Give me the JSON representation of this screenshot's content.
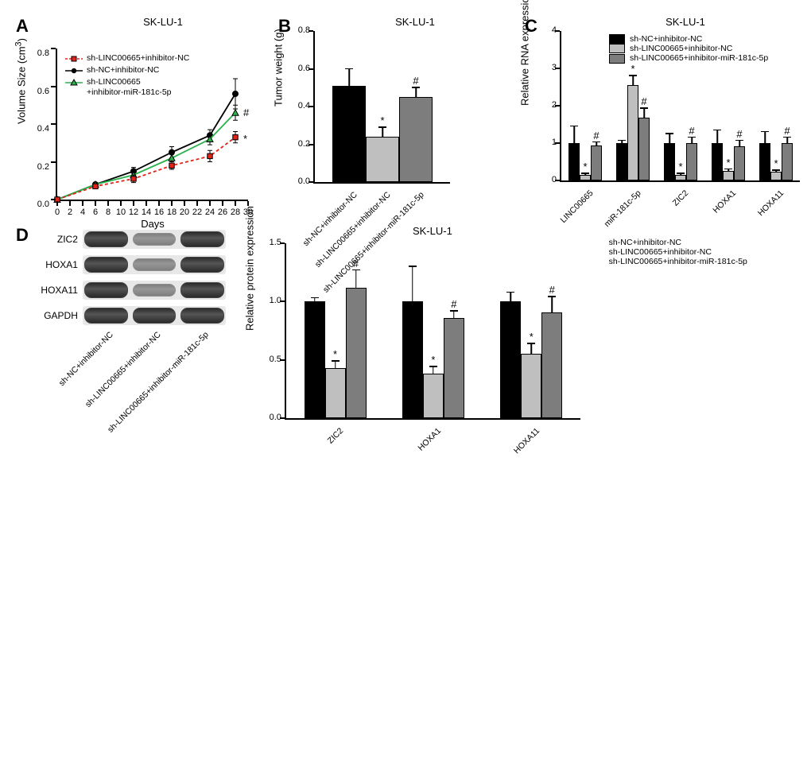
{
  "cellLine": "SK-LU-1",
  "conditions": {
    "c1": "sh-NC+inhibitor-NC",
    "c2": "sh-LINC00665+inhibitor-NC",
    "c3": "sh-LINC00665+inhibitor-miR-181c-5p"
  },
  "colors": {
    "c1": "#000000",
    "c2": "#bfbfbf",
    "c3": "#7d7d7d",
    "line_c1": "#000000",
    "line_c2": "#e2231a",
    "line_c3": "#2bb24c"
  },
  "panelA": {
    "label": "A",
    "title": "SK-LU-1",
    "ylabel": "Volume Size (cm³)",
    "ylabel_sup": "3",
    "ylabel_prefix": "Volume Size (cm",
    "ylabel_suffix": ")",
    "xlabel": "Days",
    "xmin": 0,
    "xmax": 30,
    "ymin": 0,
    "ymax": 0.8,
    "xticks": [
      0,
      2,
      4,
      6,
      8,
      10,
      12,
      14,
      16,
      18,
      20,
      22,
      24,
      26,
      28,
      30
    ],
    "xticklabels": [
      "0",
      "2",
      "4",
      "6",
      "8",
      "10",
      "12",
      "14",
      "16",
      "18",
      "20",
      "22",
      "24",
      "26",
      "28",
      "30"
    ],
    "yticks": [
      0,
      0.2,
      0.4,
      0.6,
      0.8
    ],
    "yticklabels": [
      "0.0",
      "0.2",
      "0.4",
      "0.6",
      "0.8"
    ],
    "days": [
      0,
      6,
      12,
      18,
      24,
      28
    ],
    "series": {
      "c1": {
        "y": [
          0,
          0.08,
          0.15,
          0.25,
          0.34,
          0.56
        ],
        "err": [
          0,
          0.01,
          0.02,
          0.03,
          0.03,
          0.08
        ]
      },
      "c2": {
        "y": [
          0,
          0.07,
          0.11,
          0.18,
          0.23,
          0.33
        ],
        "err": [
          0,
          0.01,
          0.02,
          0.02,
          0.03,
          0.03
        ]
      },
      "c3": {
        "y": [
          0,
          0.08,
          0.13,
          0.22,
          0.32,
          0.46
        ],
        "err": [
          0,
          0.01,
          0.02,
          0.02,
          0.03,
          0.04
        ]
      }
    },
    "annotations": {
      "hash": "#",
      "star": "*"
    }
  },
  "panelB": {
    "label": "B",
    "title": "SK-LU-1",
    "ylabel": "Tumor weight (g)",
    "ymin": 0,
    "ymax": 0.8,
    "yticks": [
      0,
      0.2,
      0.4,
      0.6,
      0.8
    ],
    "yticklabels": [
      "0.0",
      "0.2",
      "0.4",
      "0.6",
      "0.8"
    ],
    "bars": [
      {
        "cond": "c1",
        "y": 0.51,
        "err": 0.09
      },
      {
        "cond": "c2",
        "y": 0.24,
        "err": 0.05,
        "sig": "*"
      },
      {
        "cond": "c3",
        "y": 0.45,
        "err": 0.05,
        "sig": "#"
      }
    ]
  },
  "panelC": {
    "label": "C",
    "title": "SK-LU-1",
    "ylabel": "Relative RNA expression",
    "ymin": 0,
    "ymax": 4,
    "yticks": [
      0,
      1,
      2,
      3,
      4
    ],
    "yticklabels": [
      "0",
      "1",
      "2",
      "3",
      "4"
    ],
    "genes": [
      "LINC00665",
      "miR-181c-5p",
      "ZIC2",
      "HOXA1",
      "HOXA11"
    ],
    "data": {
      "LINC00665": {
        "c1": {
          "y": 1.0,
          "err": 0.45
        },
        "c2": {
          "y": 0.14,
          "err": 0.05,
          "sig": "*"
        },
        "c3": {
          "y": 0.93,
          "err": 0.1,
          "sig": "#"
        }
      },
      "miR-181c-5p": {
        "c1": {
          "y": 1.0,
          "err": 0.07
        },
        "c2": {
          "y": 2.55,
          "err": 0.25,
          "sig": "*"
        },
        "c3": {
          "y": 1.68,
          "err": 0.25,
          "sig": "#"
        }
      },
      "ZIC2": {
        "c1": {
          "y": 1.0,
          "err": 0.25
        },
        "c2": {
          "y": 0.15,
          "err": 0.04,
          "sig": "*"
        },
        "c3": {
          "y": 1.0,
          "err": 0.15,
          "sig": "#"
        }
      },
      "HOXA1": {
        "c1": {
          "y": 1.0,
          "err": 0.35
        },
        "c2": {
          "y": 0.25,
          "err": 0.05,
          "sig": "*"
        },
        "c3": {
          "y": 0.92,
          "err": 0.15,
          "sig": "#"
        }
      },
      "HOXA11": {
        "c1": {
          "y": 1.0,
          "err": 0.3
        },
        "c2": {
          "y": 0.23,
          "err": 0.04,
          "sig": "*"
        },
        "c3": {
          "y": 1.0,
          "err": 0.15,
          "sig": "#"
        }
      }
    }
  },
  "panelD": {
    "label": "D",
    "title": "SK-LU-1",
    "ylabel": "Relative protein expression",
    "wb_rows": [
      "ZIC2",
      "HOXA1",
      "HOXA11",
      "GAPDH"
    ],
    "ymin": 0,
    "ymax": 1.5,
    "yticks": [
      0,
      0.5,
      1.0,
      1.5
    ],
    "yticklabels": [
      "0.0",
      "0.5",
      "1.0",
      "1.5"
    ],
    "genes": [
      "ZIC2",
      "HOXA1",
      "HOXA11"
    ],
    "data": {
      "ZIC2": {
        "c1": {
          "y": 1.0,
          "err": 0.03
        },
        "c2": {
          "y": 0.43,
          "err": 0.06,
          "sig": "*"
        },
        "c3": {
          "y": 1.12,
          "err": 0.15,
          "sig": "#"
        }
      },
      "HOXA1": {
        "c1": {
          "y": 1.0,
          "err": 0.3
        },
        "c2": {
          "y": 0.38,
          "err": 0.06,
          "sig": "*"
        },
        "c3": {
          "y": 0.86,
          "err": 0.06,
          "sig": "#"
        }
      },
      "HOXA11": {
        "c1": {
          "y": 1.0,
          "err": 0.08
        },
        "c2": {
          "y": 0.55,
          "err": 0.09,
          "sig": "*"
        },
        "c3": {
          "y": 0.91,
          "err": 0.13,
          "sig": "#"
        }
      }
    }
  }
}
